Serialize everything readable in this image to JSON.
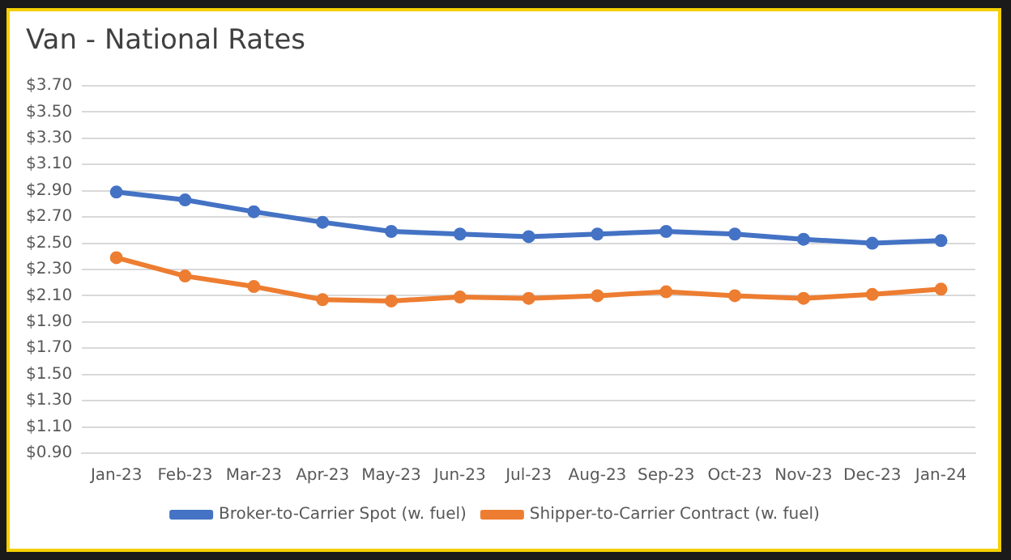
{
  "chart_data": {
    "type": "line",
    "title": "Van - National Rates",
    "categories": [
      "Jan-23",
      "Feb-23",
      "Mar-23",
      "Apr-23",
      "May-23",
      "Jun-23",
      "Jul-23",
      "Aug-23",
      "Sep-23",
      "Oct-23",
      "Nov-23",
      "Dec-23",
      "Jan-24"
    ],
    "series": [
      {
        "name": "Broker-to-Carrier Spot (w. fuel)",
        "color": "#4472c4",
        "values": [
          2.89,
          2.83,
          2.74,
          2.66,
          2.59,
          2.57,
          2.55,
          2.57,
          2.59,
          2.57,
          2.53,
          2.5,
          2.52
        ]
      },
      {
        "name": "Shipper-to-Carrier Contract (w. fuel)",
        "color": "#ed7d31",
        "values": [
          2.39,
          2.25,
          2.17,
          2.07,
          2.06,
          2.09,
          2.08,
          2.1,
          2.13,
          2.1,
          2.08,
          2.11,
          2.15
        ]
      }
    ],
    "ylim": [
      0.9,
      3.7
    ],
    "yticks": [
      {
        "value": 0.9,
        "label": "$0.90"
      },
      {
        "value": 1.1,
        "label": "$1.10"
      },
      {
        "value": 1.3,
        "label": "$1.30"
      },
      {
        "value": 1.5,
        "label": "$1.50"
      },
      {
        "value": 1.7,
        "label": "$1.70"
      },
      {
        "value": 1.9,
        "label": "$1.90"
      },
      {
        "value": 2.1,
        "label": "$2.10"
      },
      {
        "value": 2.3,
        "label": "$2.30"
      },
      {
        "value": 2.5,
        "label": "$2.50"
      },
      {
        "value": 2.7,
        "label": "$2.70"
      },
      {
        "value": 2.9,
        "label": "$2.90"
      },
      {
        "value": 3.1,
        "label": "$3.10"
      },
      {
        "value": 3.3,
        "label": "$3.30"
      },
      {
        "value": 3.5,
        "label": "$3.50"
      },
      {
        "value": 3.7,
        "label": "$3.70"
      }
    ],
    "grid": "y",
    "legend": "bottom",
    "marker": "circle",
    "line_style": "solid"
  }
}
